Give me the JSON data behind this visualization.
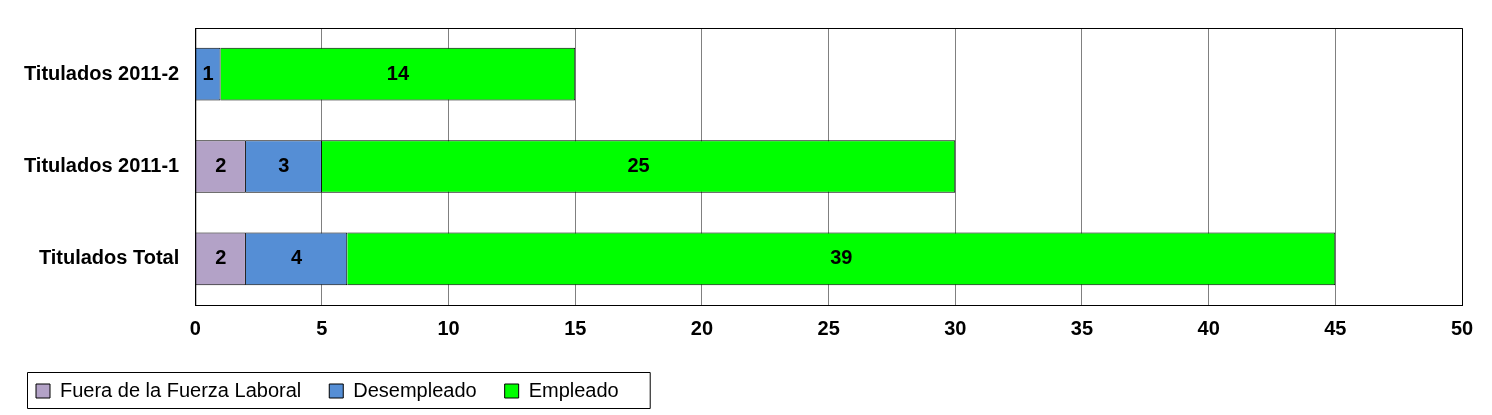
{
  "chart_data": {
    "type": "bar",
    "orientation": "horizontal",
    "stacked": true,
    "categories": [
      "Titulados 2011-2",
      "Titulados 2011-1",
      "Titulados Total"
    ],
    "series": [
      {
        "name": "Fuera de la Fuerza Laboral",
        "color": "#b3a2c7",
        "values": [
          null,
          2,
          2
        ]
      },
      {
        "name": "Desempleado",
        "color": "#558ed5",
        "values": [
          1,
          3,
          4
        ]
      },
      {
        "name": "Empleado",
        "color": "#00ff00",
        "values": [
          14,
          25,
          39
        ]
      }
    ],
    "xlim": [
      0,
      50
    ],
    "xticks": [
      0,
      5,
      10,
      15,
      20,
      25,
      30,
      35,
      40,
      45,
      50
    ],
    "grid": "x",
    "legend": "bottom",
    "data_labels": true
  }
}
